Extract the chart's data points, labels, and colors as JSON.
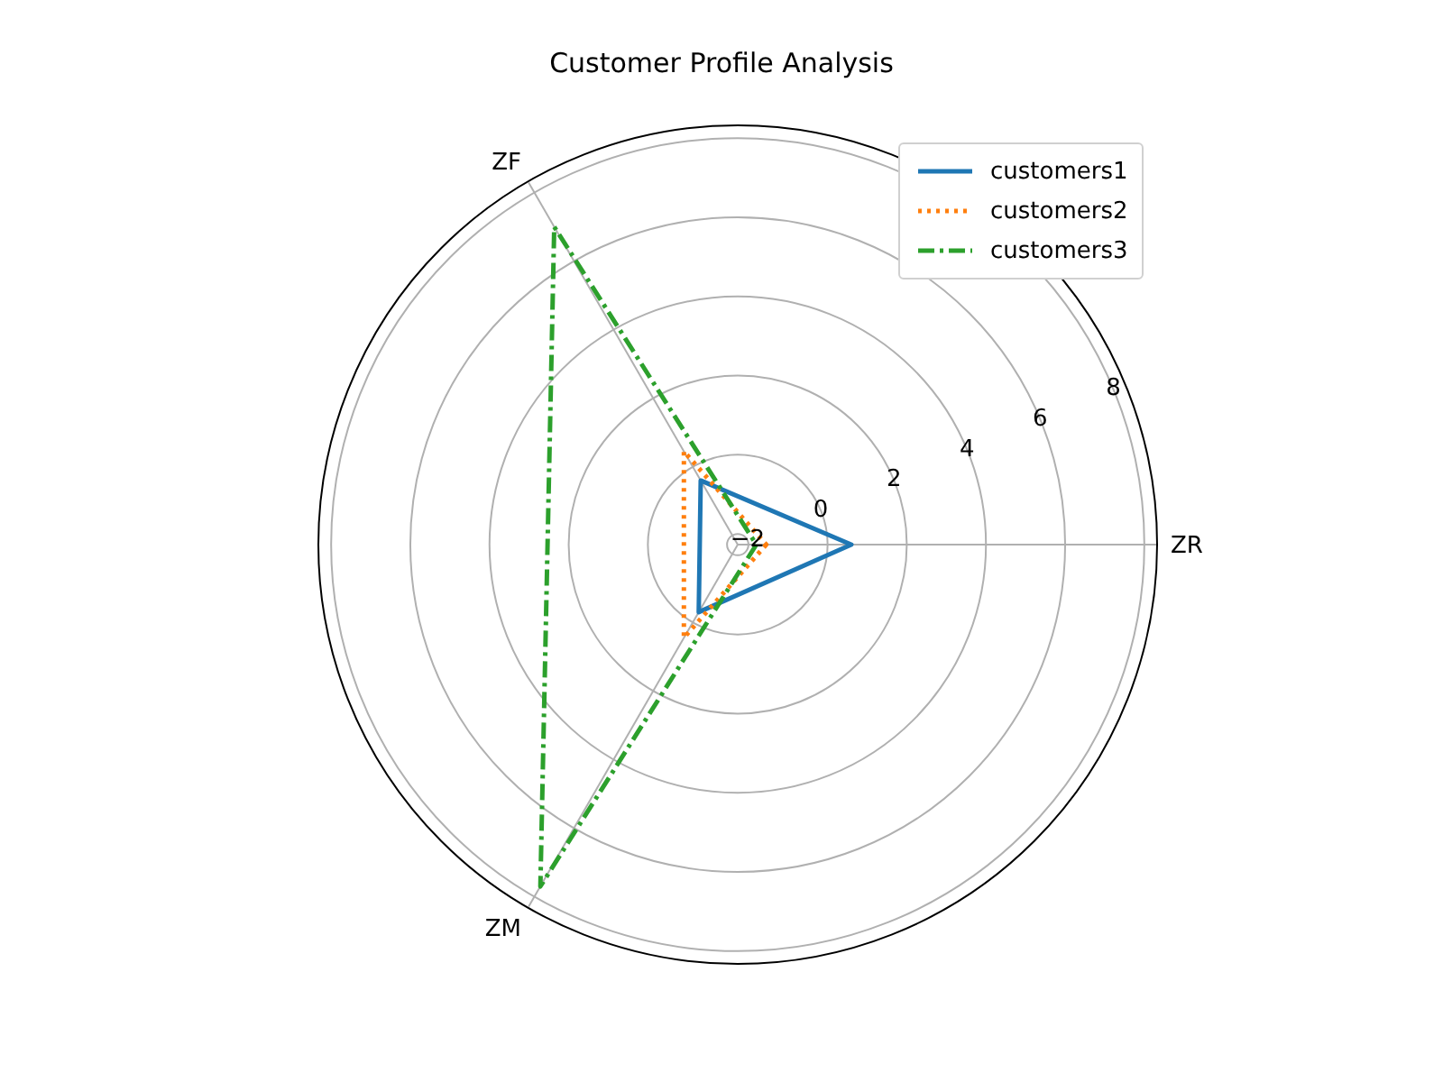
{
  "chart_data": {
    "type": "radar",
    "title": "Customer Profile Analysis",
    "categories": [
      "ZR",
      "ZM",
      "ZF"
    ],
    "series": [
      {
        "name": "customers1",
        "color": "#1f77b4",
        "line_style": "solid",
        "values": [
          0.6,
          -0.3,
          -0.4
        ]
      },
      {
        "name": "customers2",
        "color": "#ff7f0e",
        "line_style": "dotted",
        "values": [
          -1.55,
          0.45,
          0.45
        ]
      },
      {
        "name": "customers3",
        "color": "#2ca02c",
        "line_style": "dashdot",
        "values": [
          -1.8,
          7.7,
          7.0
        ]
      }
    ],
    "ylim": [
      -2.27,
      8.3
    ],
    "yticks": [
      -2,
      0,
      2,
      4,
      6,
      8
    ],
    "grid": true,
    "legend": "top right",
    "marker": "none"
  }
}
